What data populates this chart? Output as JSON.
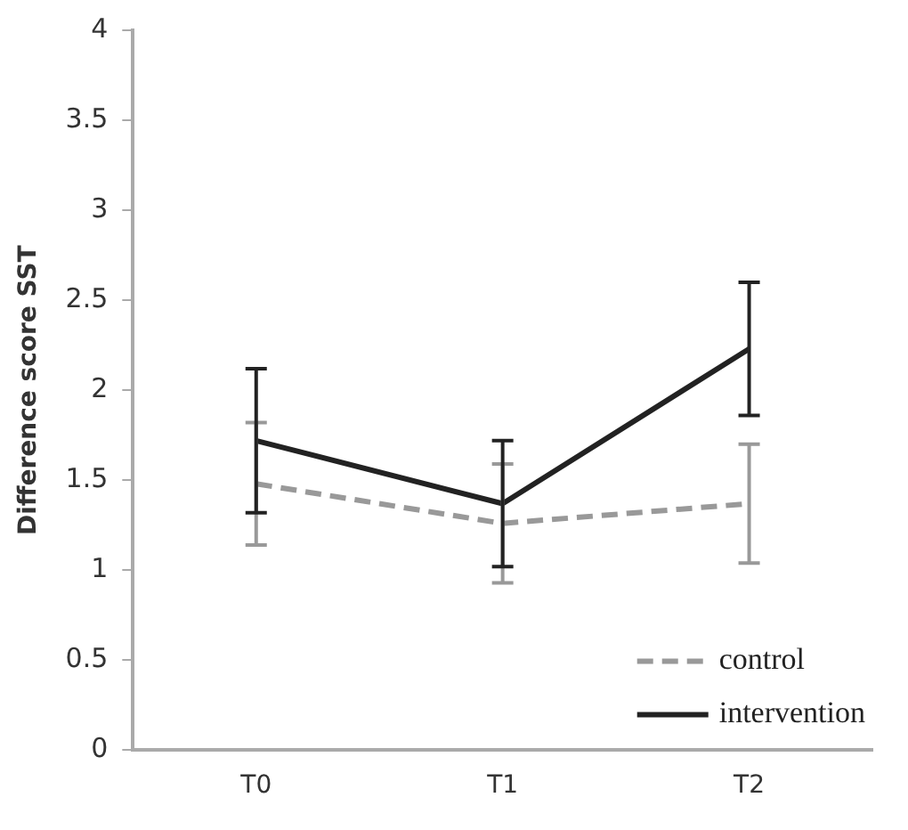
{
  "chart_data": {
    "type": "line",
    "ylabel": "Difference score SST",
    "categories": [
      "T0",
      "T1",
      "T2"
    ],
    "series": [
      {
        "name": "control",
        "color": "#999999",
        "line_style": "dashed",
        "values": [
          1.48,
          1.26,
          1.37
        ],
        "errors": [
          0.34,
          0.33,
          0.33
        ]
      },
      {
        "name": "intervention",
        "color": "#222222",
        "line_style": "solid",
        "values": [
          1.72,
          1.37,
          2.23
        ],
        "errors": [
          0.4,
          0.35,
          0.37
        ]
      }
    ],
    "ylim": [
      0,
      4
    ],
    "yticks": [
      0,
      0.5,
      1,
      1.5,
      2,
      2.5,
      3,
      3.5,
      4
    ],
    "grid": false,
    "legend": "bottom right",
    "marker": "none"
  }
}
